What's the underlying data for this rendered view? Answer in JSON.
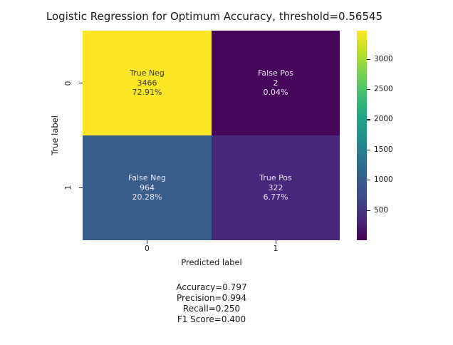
{
  "figure": {
    "background": "#ffffff",
    "text_color": "#1a1a1a"
  },
  "chart_data": {
    "type": "heatmap",
    "title": "Logistic Regression for Optimum Accuracy, threshold=0.56545",
    "xlabel": "Predicted label",
    "ylabel": "True label",
    "x_ticklabels": [
      "0",
      "1"
    ],
    "y_ticklabels": [
      "0",
      "1"
    ],
    "matrix": [
      [
        3466,
        2
      ],
      [
        964,
        322
      ]
    ],
    "cells": [
      {
        "row": 0,
        "col": 0,
        "label": "True Neg",
        "count": "3466",
        "percent": "72.91%",
        "color": "#fbe625",
        "text_color": "#3f3f33"
      },
      {
        "row": 0,
        "col": 1,
        "label": "False Pos",
        "count": "2",
        "percent": "0.04%",
        "color": "#450559",
        "text_color": "#e9e6f2"
      },
      {
        "row": 1,
        "col": 0,
        "label": "False Neg",
        "count": "964",
        "percent": "20.28%",
        "color": "#3a5e8c",
        "text_color": "#e9e6f2"
      },
      {
        "row": 1,
        "col": 1,
        "label": "True Pos",
        "count": "322",
        "percent": "6.77%",
        "color": "#46277b",
        "text_color": "#e9e6f2"
      }
    ],
    "colorbar": {
      "colormap": "viridis",
      "vmin": 2,
      "vmax": 3466,
      "ticks": [
        "500",
        "1000",
        "1500",
        "2000",
        "2500",
        "3000"
      ],
      "stops_bottom_to_top": [
        "#440154",
        "#482878",
        "#3e4a89",
        "#355f8d",
        "#2a788e",
        "#21918c",
        "#22a884",
        "#44bf70",
        "#7ad151",
        "#bddf26",
        "#fde725"
      ]
    },
    "annotations": [
      "Accuracy=0.797",
      "Precision=0.994",
      "Recall=0.250",
      "F1 Score=0.400"
    ]
  }
}
